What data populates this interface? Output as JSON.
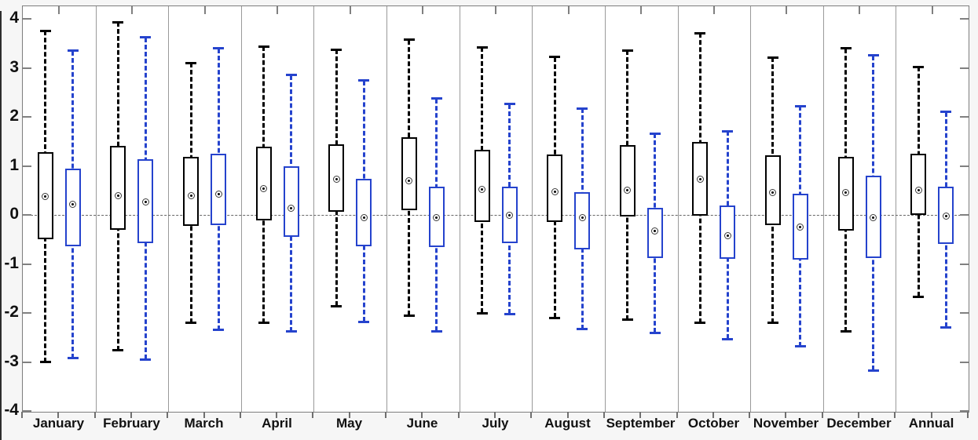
{
  "chart_data": {
    "type": "box",
    "title": "",
    "xlabel": "",
    "ylabel": "",
    "yticks": [
      4,
      3,
      2,
      1,
      0,
      -1,
      -2,
      -3,
      -4
    ],
    "ylim": [
      -4.02,
      4.26
    ],
    "zero_reference_line": true,
    "grid": "vertical-column-separators",
    "whisker_style": "dashed",
    "mean_marker": "circled-dot",
    "legend": "none",
    "categories": [
      "January",
      "February",
      "March",
      "April",
      "May",
      "June",
      "July",
      "August",
      "September",
      "October",
      "November",
      "December",
      "Annual"
    ],
    "series": [
      {
        "name": "series-1-black",
        "color": "#000000",
        "boxes": [
          {
            "low": -3.0,
            "q1": -0.5,
            "mean": 0.38,
            "q3": 1.28,
            "high": 3.76
          },
          {
            "low": -2.76,
            "q1": -0.3,
            "mean": 0.4,
            "q3": 1.41,
            "high": 3.93
          },
          {
            "low": -2.2,
            "q1": -0.22,
            "mean": 0.39,
            "q3": 1.18,
            "high": 3.1
          },
          {
            "low": -2.2,
            "q1": -0.11,
            "mean": 0.53,
            "q3": 1.39,
            "high": 3.44
          },
          {
            "low": -1.86,
            "q1": 0.07,
            "mean": 0.73,
            "q3": 1.44,
            "high": 3.37
          },
          {
            "low": -2.05,
            "q1": 0.09,
            "mean": 0.7,
            "q3": 1.58,
            "high": 3.57
          },
          {
            "low": -2.0,
            "q1": -0.15,
            "mean": 0.52,
            "q3": 1.33,
            "high": 3.42
          },
          {
            "low": -2.1,
            "q1": -0.15,
            "mean": 0.48,
            "q3": 1.23,
            "high": 3.22
          },
          {
            "low": -2.14,
            "q1": -0.03,
            "mean": 0.5,
            "q3": 1.42,
            "high": 3.36
          },
          {
            "low": -2.2,
            "q1": -0.02,
            "mean": 0.73,
            "q3": 1.49,
            "high": 3.71
          },
          {
            "low": -2.2,
            "q1": -0.2,
            "mean": 0.46,
            "q3": 1.22,
            "high": 3.21
          },
          {
            "low": -2.38,
            "q1": -0.32,
            "mean": 0.45,
            "q3": 1.18,
            "high": 3.4
          },
          {
            "low": -1.67,
            "q1": 0.0,
            "mean": 0.51,
            "q3": 1.25,
            "high": 3.02
          }
        ]
      },
      {
        "name": "series-2-blue",
        "color": "#2543cd",
        "boxes": [
          {
            "low": -2.92,
            "q1": -0.64,
            "mean": 0.22,
            "q3": 0.95,
            "high": 3.35
          },
          {
            "low": -2.95,
            "q1": -0.58,
            "mean": 0.27,
            "q3": 1.14,
            "high": 3.62
          },
          {
            "low": -2.35,
            "q1": -0.21,
            "mean": 0.43,
            "q3": 1.25,
            "high": 3.4
          },
          {
            "low": -2.38,
            "q1": -0.44,
            "mean": 0.14,
            "q3": 0.99,
            "high": 2.85
          },
          {
            "low": -2.18,
            "q1": -0.64,
            "mean": -0.06,
            "q3": 0.74,
            "high": 2.74
          },
          {
            "low": -2.37,
            "q1": -0.66,
            "mean": -0.05,
            "q3": 0.57,
            "high": 2.37
          },
          {
            "low": -2.02,
            "q1": -0.57,
            "mean": 0.0,
            "q3": 0.57,
            "high": 2.26
          },
          {
            "low": -2.33,
            "q1": -0.7,
            "mean": -0.05,
            "q3": 0.46,
            "high": 2.17
          },
          {
            "low": -2.4,
            "q1": -0.88,
            "mean": -0.32,
            "q3": 0.14,
            "high": 1.66
          },
          {
            "low": -2.53,
            "q1": -0.9,
            "mean": -0.42,
            "q3": 0.2,
            "high": 1.71
          },
          {
            "low": -2.68,
            "q1": -0.91,
            "mean": -0.24,
            "q3": 0.43,
            "high": 2.22
          },
          {
            "low": -3.17,
            "q1": -0.88,
            "mean": -0.05,
            "q3": 0.8,
            "high": 3.25
          },
          {
            "low": -2.29,
            "q1": -0.59,
            "mean": -0.03,
            "q3": 0.58,
            "high": 2.1
          }
        ]
      }
    ]
  }
}
